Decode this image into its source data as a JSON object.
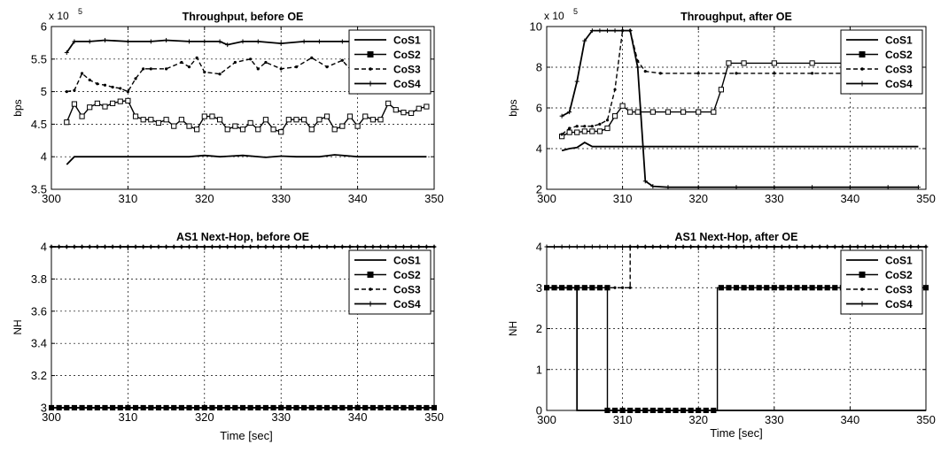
{
  "chart_data": [
    {
      "type": "line",
      "title": "Throughput, before OE",
      "xlabel": "",
      "ylabel": "bps",
      "y_exponent": "x 10",
      "y_exponent_power": "5",
      "xlim": [
        300,
        350
      ],
      "ylim": [
        3.5,
        6
      ],
      "xticks": [
        300,
        310,
        320,
        330,
        340,
        350
      ],
      "yticks": [
        3.5,
        4,
        4.5,
        5,
        5.5,
        6
      ],
      "grid": true,
      "legend_position": "top-right",
      "series": [
        {
          "name": "CoS1",
          "marker": "none",
          "dash": "solid",
          "x": [
            302,
            303,
            305,
            310,
            315,
            318,
            320,
            322,
            325,
            328,
            330,
            332,
            335,
            337,
            340,
            345,
            349
          ],
          "y": [
            3.88,
            4.0,
            4.0,
            4.0,
            4.0,
            4.0,
            4.02,
            4.0,
            4.02,
            3.99,
            4.01,
            4.0,
            4.0,
            4.03,
            4.0,
            4.0,
            4.0
          ]
        },
        {
          "name": "CoS2",
          "marker": "square",
          "dash": "solid",
          "x": [
            302,
            303,
            304,
            305,
            306,
            307,
            308,
            309,
            310,
            311,
            312,
            313,
            314,
            315,
            316,
            317,
            318,
            319,
            320,
            321,
            322,
            323,
            324,
            325,
            326,
            327,
            328,
            329,
            330,
            331,
            332,
            333,
            334,
            335,
            336,
            337,
            338,
            339,
            340,
            341,
            342,
            343,
            344,
            345,
            346,
            347,
            348,
            349
          ],
          "y": [
            4.53,
            4.81,
            4.62,
            4.76,
            4.82,
            4.77,
            4.82,
            4.85,
            4.86,
            4.62,
            4.57,
            4.57,
            4.52,
            4.57,
            4.47,
            4.57,
            4.47,
            4.42,
            4.62,
            4.62,
            4.57,
            4.42,
            4.47,
            4.42,
            4.52,
            4.42,
            4.57,
            4.42,
            4.38,
            4.57,
            4.57,
            4.57,
            4.42,
            4.57,
            4.62,
            4.42,
            4.47,
            4.62,
            4.47,
            4.62,
            4.57,
            4.57,
            4.82,
            4.72,
            4.68,
            4.67,
            4.74,
            4.77
          ]
        },
        {
          "name": "CoS3",
          "marker": "dot",
          "dash": "dashed",
          "x": [
            302,
            303,
            304,
            305,
            306,
            307,
            308,
            309,
            310,
            311,
            312,
            313,
            315,
            317,
            318,
            319,
            320,
            322,
            324,
            326,
            327,
            328,
            330,
            332,
            334,
            336,
            338,
            340,
            342,
            345,
            349
          ],
          "y": [
            5.0,
            5.02,
            5.28,
            5.18,
            5.12,
            5.1,
            5.07,
            5.05,
            5.0,
            5.2,
            5.35,
            5.35,
            5.35,
            5.45,
            5.38,
            5.52,
            5.3,
            5.27,
            5.45,
            5.5,
            5.35,
            5.45,
            5.35,
            5.38,
            5.52,
            5.38,
            5.48,
            5.22,
            5.38,
            5.48,
            5.5
          ]
        },
        {
          "name": "CoS4",
          "marker": "plus",
          "dash": "solid",
          "x": [
            302,
            303,
            305,
            307,
            310,
            313,
            315,
            318,
            320,
            322,
            323,
            325,
            327,
            330,
            333,
            335,
            338,
            340,
            343,
            345,
            349
          ],
          "y": [
            5.6,
            5.77,
            5.77,
            5.79,
            5.77,
            5.77,
            5.79,
            5.77,
            5.77,
            5.77,
            5.72,
            5.77,
            5.77,
            5.74,
            5.77,
            5.77,
            5.77,
            5.77,
            5.77,
            5.77,
            5.77
          ]
        }
      ]
    },
    {
      "type": "line",
      "title": "Throughput, after OE",
      "xlabel": "",
      "ylabel": "bps",
      "y_exponent": "x 10",
      "y_exponent_power": "5",
      "xlim": [
        300,
        350
      ],
      "ylim": [
        2,
        10
      ],
      "xticks": [
        300,
        310,
        320,
        330,
        340,
        350
      ],
      "yticks": [
        2,
        4,
        6,
        8,
        10
      ],
      "grid": true,
      "legend_position": "top-right",
      "series": [
        {
          "name": "CoS1",
          "marker": "none",
          "dash": "solid",
          "x": [
            302,
            303,
            304,
            305,
            306,
            310,
            320,
            330,
            340,
            349
          ],
          "y": [
            3.9,
            4.0,
            4.05,
            4.3,
            4.1,
            4.1,
            4.1,
            4.1,
            4.1,
            4.1
          ]
        },
        {
          "name": "CoS2",
          "marker": "square",
          "dash": "solid",
          "x": [
            302,
            303,
            304,
            305,
            306,
            307,
            308,
            309,
            310,
            311,
            312,
            314,
            316,
            318,
            320,
            322,
            323,
            324,
            326,
            330,
            335,
            340,
            345,
            349
          ],
          "y": [
            4.6,
            4.8,
            4.8,
            4.85,
            4.85,
            4.85,
            5.0,
            5.6,
            6.1,
            5.8,
            5.8,
            5.8,
            5.8,
            5.8,
            5.8,
            5.8,
            6.9,
            8.2,
            8.2,
            8.2,
            8.2,
            8.2,
            8.2,
            8.2
          ]
        },
        {
          "name": "CoS3",
          "marker": "dot",
          "dash": "dashed",
          "x": [
            302,
            303,
            304,
            305,
            306,
            307,
            308,
            309,
            310,
            311,
            312,
            313,
            315,
            320,
            325,
            330,
            335,
            340,
            345,
            349
          ],
          "y": [
            4.7,
            5.0,
            5.1,
            5.1,
            5.1,
            5.2,
            5.4,
            6.9,
            9.8,
            9.8,
            8.3,
            7.8,
            7.7,
            7.7,
            7.7,
            7.7,
            7.7,
            7.7,
            7.7,
            7.7
          ]
        },
        {
          "name": "CoS4",
          "marker": "plus",
          "dash": "solid",
          "x": [
            302,
            303,
            304,
            305,
            306,
            307,
            308,
            309,
            310,
            311,
            312,
            313,
            314,
            316,
            320,
            325,
            330,
            335,
            340,
            345,
            349
          ],
          "y": [
            5.6,
            5.8,
            7.3,
            9.3,
            9.8,
            9.8,
            9.8,
            9.8,
            9.8,
            9.8,
            8.0,
            2.4,
            2.15,
            2.1,
            2.1,
            2.1,
            2.1,
            2.1,
            2.1,
            2.1,
            2.1
          ]
        }
      ]
    },
    {
      "type": "line",
      "title": "AS1 Next-Hop, before OE",
      "xlabel": "",
      "ylabel": "NH",
      "xlim": [
        300,
        350
      ],
      "ylim": [
        3,
        4
      ],
      "xticks": [
        300,
        310,
        320,
        330,
        340,
        350
      ],
      "yticks": [
        3,
        3.2,
        3.4,
        3.6,
        3.8,
        4
      ],
      "grid": true,
      "legend_position": "top-right",
      "series": [
        {
          "name": "CoS1",
          "marker": "none",
          "dash": "solid",
          "x": [
            300,
            350
          ],
          "y": [
            3,
            3
          ]
        },
        {
          "name": "CoS2",
          "marker": "square",
          "dash": "solid",
          "x": [
            300,
            350
          ],
          "y": [
            3,
            3
          ]
        },
        {
          "name": "CoS3",
          "marker": "dot",
          "dash": "dashed",
          "x": [
            300,
            350
          ],
          "y": [
            4,
            4
          ]
        },
        {
          "name": "CoS4",
          "marker": "plus",
          "dash": "solid",
          "x": [
            300,
            350
          ],
          "y": [
            4,
            4
          ]
        }
      ]
    },
    {
      "type": "line",
      "title": "AS1 Next-Hop, after OE",
      "xlabel": "Time [sec]",
      "ylabel": "NH",
      "xlim": [
        300,
        350
      ],
      "ylim": [
        0,
        4
      ],
      "xticks": [
        300,
        310,
        320,
        330,
        340,
        350
      ],
      "yticks": [
        0,
        1,
        2,
        3,
        4
      ],
      "grid": true,
      "legend_position": "top-right",
      "series": [
        {
          "name": "CoS1",
          "marker": "none",
          "dash": "solid",
          "x": [
            300,
            304,
            304,
            350
          ],
          "y": [
            3,
            3,
            0,
            0
          ]
        },
        {
          "name": "CoS2",
          "marker": "square",
          "dash": "solid",
          "x": [
            300,
            308,
            308,
            322.5,
            322.5,
            350
          ],
          "y": [
            3,
            3,
            0,
            0,
            3,
            3
          ]
        },
        {
          "name": "CoS3",
          "marker": "dot",
          "dash": "dashed",
          "x": [
            300,
            311,
            311,
            350
          ],
          "y": [
            3,
            3,
            4,
            4
          ]
        },
        {
          "name": "CoS4",
          "marker": "plus",
          "dash": "solid",
          "x": [
            300,
            350
          ],
          "y": [
            4,
            4
          ]
        }
      ]
    }
  ],
  "xlabel_bottom_left": "Time [sec]"
}
